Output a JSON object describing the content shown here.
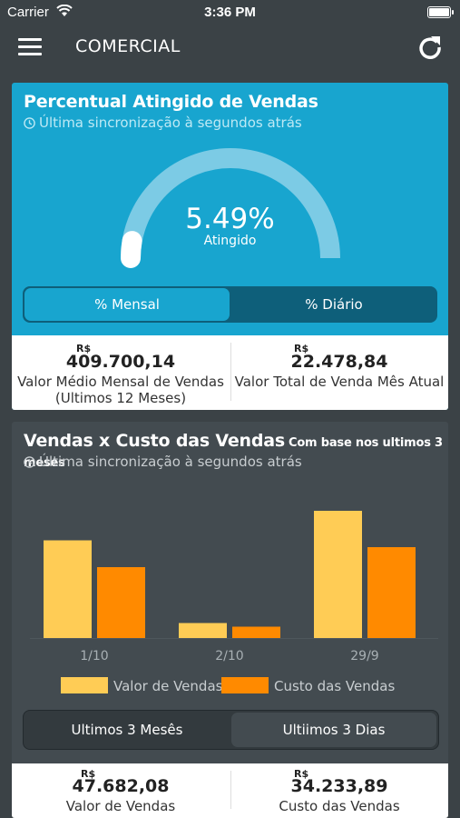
{
  "statusbar": {
    "carrier": "Carrier",
    "time": "3:36 PM"
  },
  "header": {
    "title": "COMERCIAL"
  },
  "colors": {
    "background": "#3b4246",
    "primary": "#18a5cf",
    "bar_vendas": "#ffcc55",
    "bar_custo": "#ff8a00"
  },
  "sales_card": {
    "title": "Percentual Atingido de Vendas",
    "sync_text": "Última sincronização à segundos atrás",
    "gauge_value": "5.49%",
    "gauge_fraction": 0.0549,
    "gauge_label": "Atingido",
    "tabs": [
      "% Mensal",
      "% Diário"
    ],
    "stats": [
      {
        "currency": "R$",
        "amount": "409.700,14",
        "caption": "Valor Médio Mensal de Vendas (Ultimos 12 Meses)"
      },
      {
        "currency": "R$",
        "amount": "22.478,84",
        "caption": "Valor Total de Venda Mês Atual"
      }
    ]
  },
  "cost_card": {
    "title": "Vendas x Custo das Vendas",
    "subtitle": "Com base nos ultimos 3 meses",
    "sync_text": "Última sincronização à segundos atrás",
    "tabs": [
      "Ultimos 3 Mesês",
      "Ultiimos 3 Dias"
    ],
    "stats": [
      {
        "currency": "R$",
        "amount": "47.682,08",
        "caption": "Valor de Vendas"
      },
      {
        "currency": "R$",
        "amount": "34.233,89",
        "caption": "Custo das Vendas"
      }
    ]
  },
  "chart_data": {
    "type": "bar",
    "categories": [
      "1/10",
      "2/10",
      "29/9"
    ],
    "series": [
      {
        "name": "Valor de Vendas",
        "values": [
          21500,
          3300,
          28000
        ]
      },
      {
        "name": "Custo das Vendas",
        "values": [
          15600,
          2500,
          20000
        ]
      }
    ],
    "ylim": [
      0,
      30000
    ],
    "legend": "bottom",
    "grid": false
  }
}
